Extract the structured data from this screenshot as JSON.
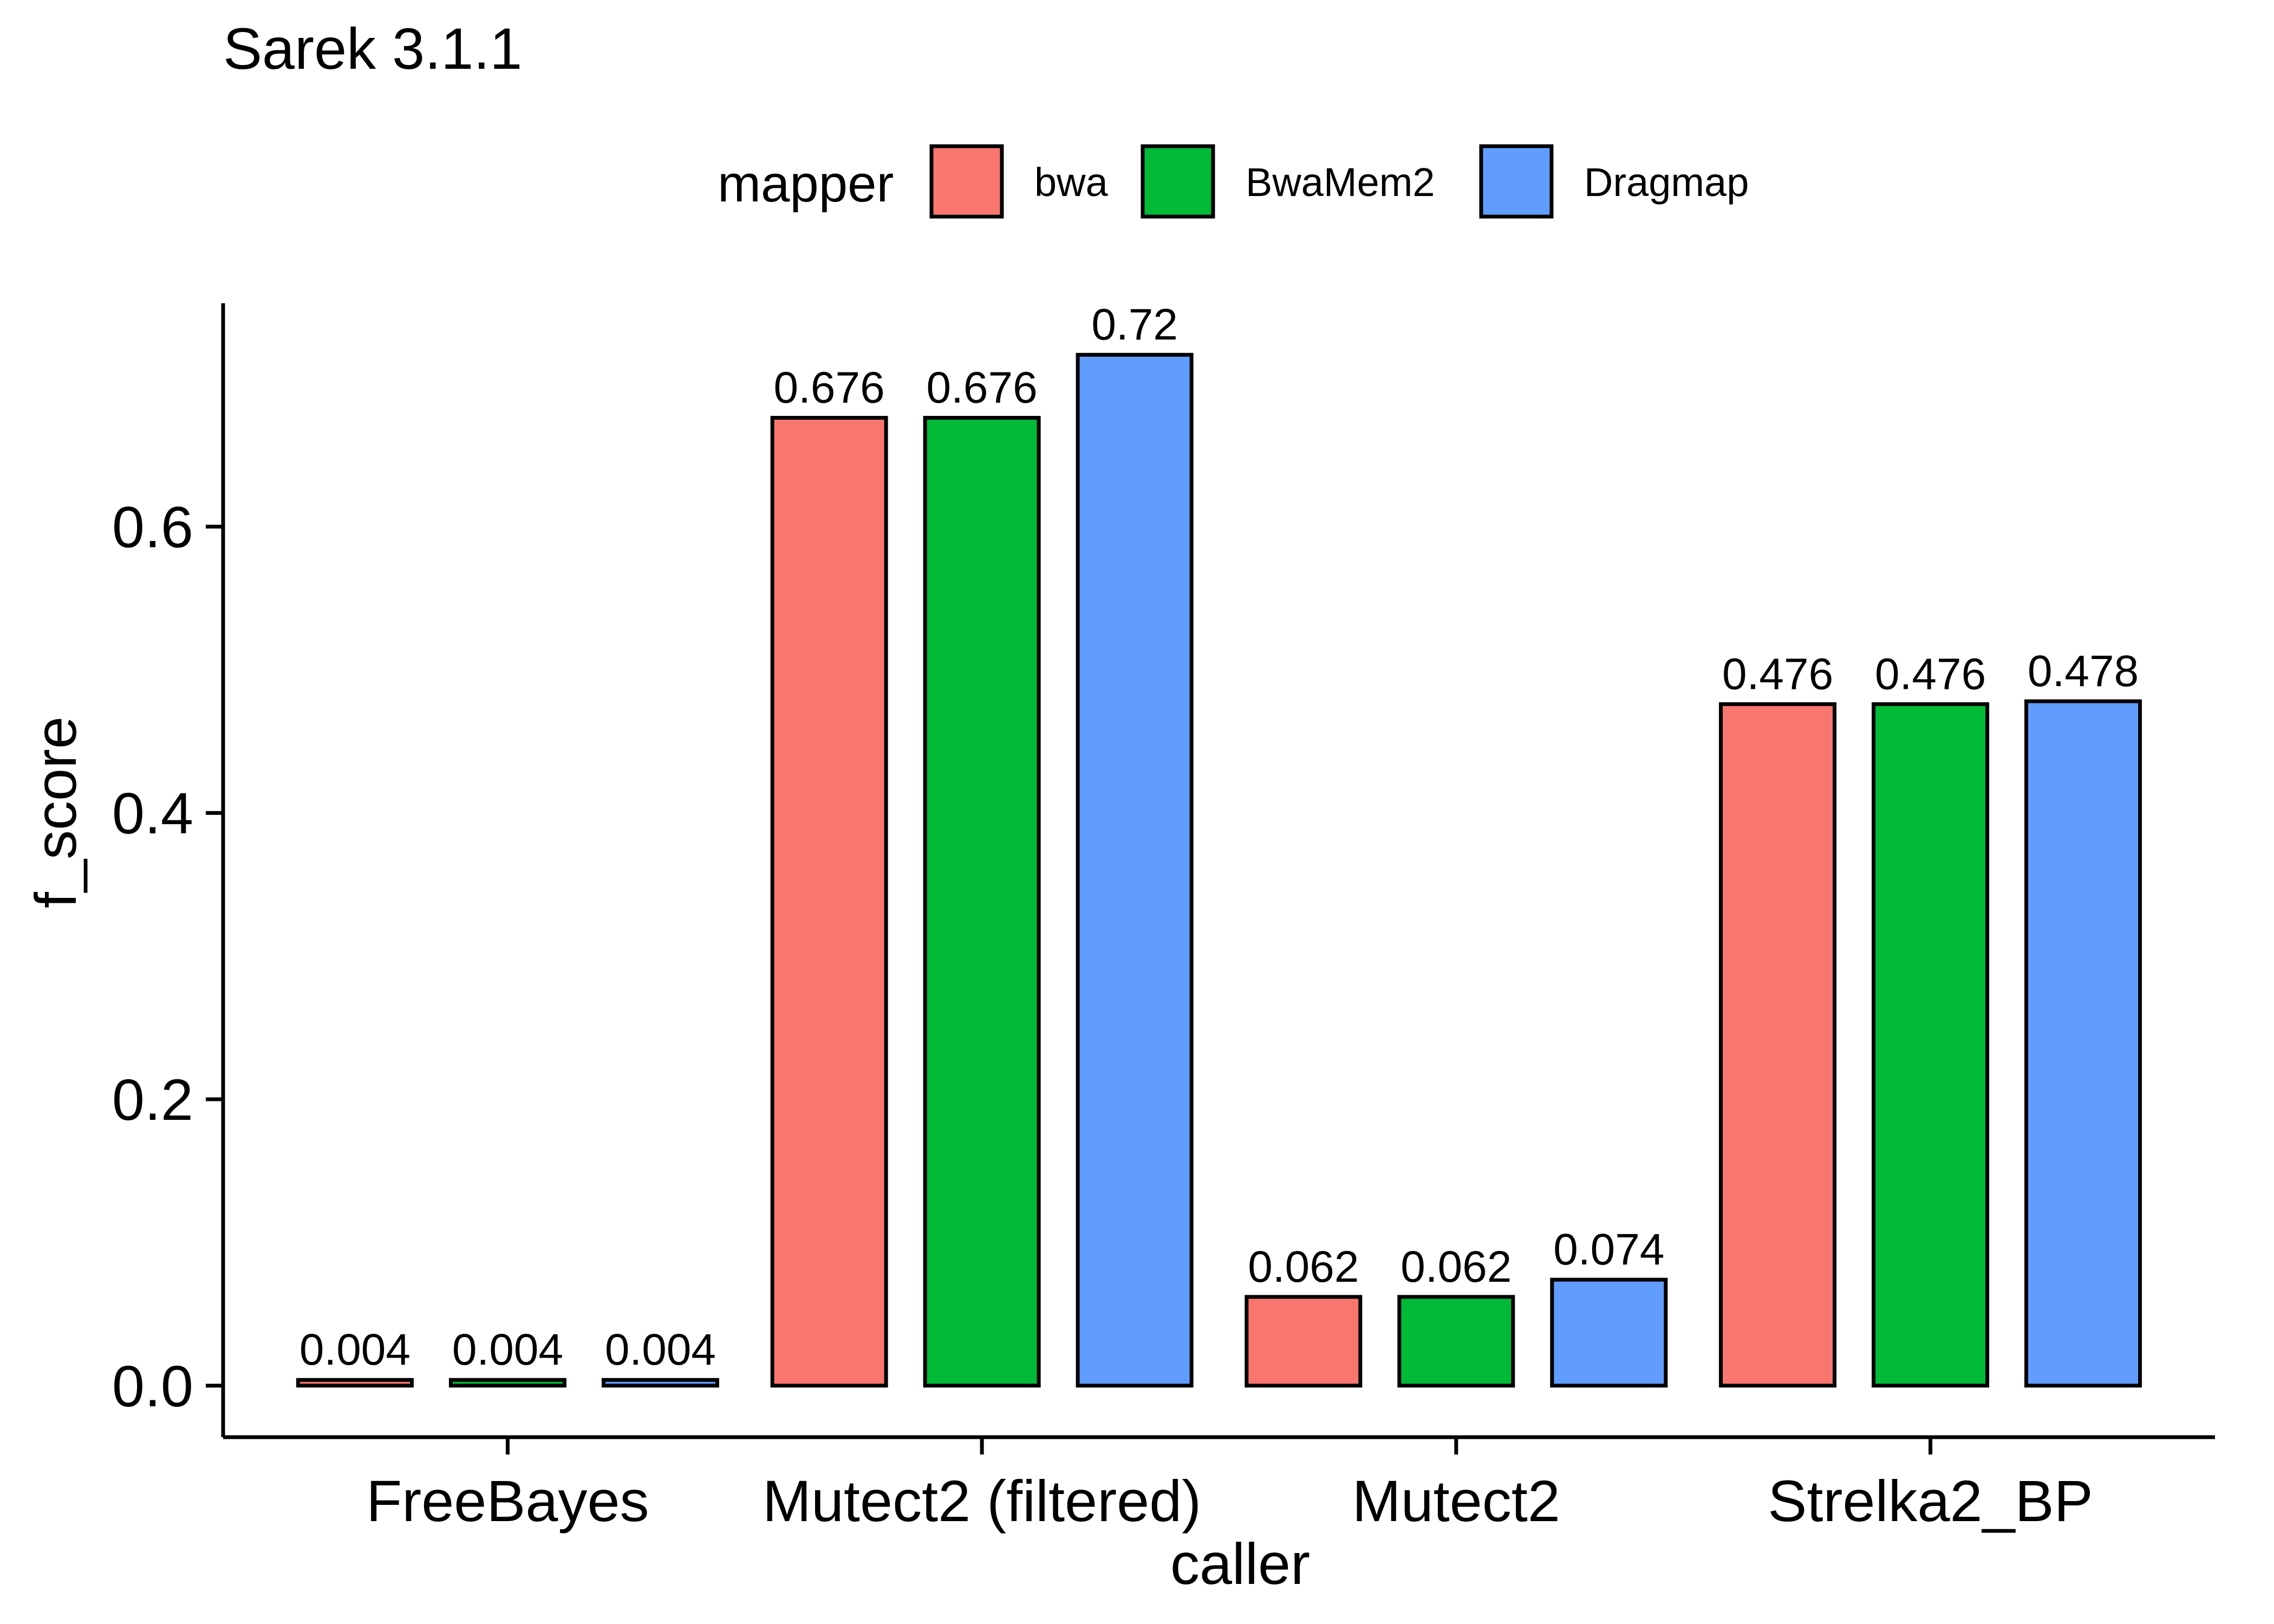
{
  "chart_data": {
    "type": "bar",
    "title": "Sarek 3.1.1",
    "xlabel": "caller",
    "ylabel": "f_score",
    "categories": [
      "FreeBayes",
      "Mutect2 (filtered)",
      "Mutect2",
      "Strelka2_BP"
    ],
    "series": [
      {
        "name": "bwa",
        "color": "#F8766D",
        "values": [
          0.004,
          0.676,
          0.062,
          0.476
        ]
      },
      {
        "name": "BwaMem2",
        "color": "#00BA38",
        "values": [
          0.004,
          0.676,
          0.062,
          0.476
        ]
      },
      {
        "name": "Dragmap",
        "color": "#619CFF",
        "values": [
          0.004,
          0.72,
          0.074,
          0.478
        ]
      }
    ],
    "data_labels": [
      [
        "0.004",
        "0.004",
        "0.004"
      ],
      [
        "0.676",
        "0.676",
        "0.72"
      ],
      [
        "0.062",
        "0.062",
        "0.074"
      ],
      [
        "0.476",
        "0.476",
        "0.478"
      ]
    ],
    "yticks": [
      0,
      0.2,
      0.4,
      0.6
    ],
    "ytick_labels": [
      "0.0",
      "0.2",
      "0.4",
      "0.6"
    ],
    "ylim": [
      -0.036,
      0.756
    ],
    "legend": {
      "title": "mapper",
      "position": "top"
    },
    "grid": false
  }
}
